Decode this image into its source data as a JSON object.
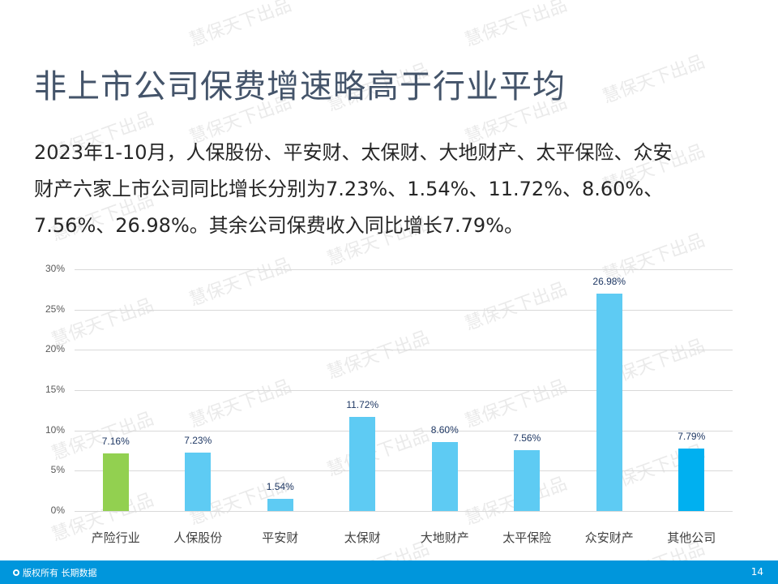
{
  "title": "非上市公司保费增速略高于行业平均",
  "body": {
    "lines": [
      "2023年1-10月，人保股份、平安财、太保财、大地财产、太平保险、众安",
      "财产六家上市公司同比增长分别为7.23%、1.54%、11.72%、8.60%、",
      "7.56%、26.98%。其余公司保费收入同比增长7.79%。"
    ]
  },
  "watermark_text": "慧保天下出品",
  "chart_data": {
    "type": "bar",
    "title": "",
    "xlabel": "",
    "ylabel": "",
    "categories": [
      "产险行业",
      "人保股份",
      "平安财",
      "太保财",
      "大地财产",
      "太平保险",
      "众安财产",
      "其他公司"
    ],
    "values": [
      7.16,
      7.23,
      1.54,
      11.72,
      8.6,
      7.56,
      26.98,
      7.79
    ],
    "value_labels": [
      "7.16%",
      "7.23%",
      "1.54%",
      "11.72%",
      "8.60%",
      "7.56%",
      "26.98%",
      "7.79%"
    ],
    "bar_colors": [
      "#92d050",
      "#5ecbf3",
      "#5ecbf3",
      "#5ecbf3",
      "#5ecbf3",
      "#5ecbf3",
      "#5ecbf3",
      "#00b0f0"
    ],
    "ylim": [
      0,
      30
    ],
    "yticks": [
      "0%",
      "5%",
      "10%",
      "15%",
      "20%",
      "25%",
      "30%"
    ],
    "ytick_values": [
      0,
      5,
      10,
      15,
      20,
      25,
      30
    ],
    "grid": true,
    "legend": null
  },
  "footer": {
    "copyright": "版权所有 长期数据",
    "page_number": "14",
    "background": "#0096dc"
  }
}
